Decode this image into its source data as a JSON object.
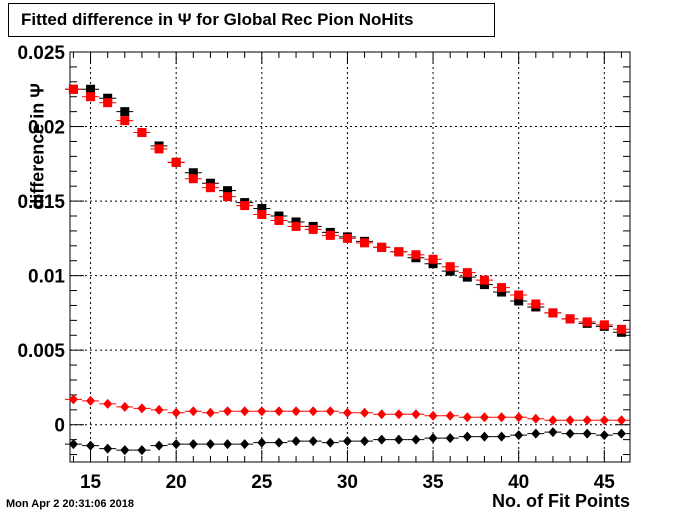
{
  "title": "Fitted difference in  Ψ  for Global Rec Pion NoHits",
  "datestamp": "Mon Apr  2 20:31:06 2018",
  "chart_data": {
    "type": "scatter",
    "xlabel": "No. of Fit Points",
    "ylabel": "difference in  Ψ",
    "xlim": [
      13.8,
      46.5
    ],
    "ylim": [
      -0.0025,
      0.025
    ],
    "x_ticks": [
      "15",
      "20",
      "25",
      "30",
      "35",
      "40",
      "45"
    ],
    "y_ticks": [
      "0",
      "0.005",
      "0.01",
      "0.015",
      "0.02",
      "0.025"
    ],
    "grid": true,
    "x": [
      14,
      15,
      16,
      17,
      18,
      19,
      20,
      21,
      22,
      23,
      24,
      25,
      26,
      27,
      28,
      29,
      30,
      31,
      32,
      33,
      34,
      35,
      36,
      37,
      38,
      39,
      40,
      41,
      42,
      43,
      44,
      45,
      46
    ],
    "series": [
      {
        "marker": "square",
        "color": "#000000",
        "values": [
          0.0225,
          0.0225,
          0.0219,
          0.021,
          0.0196,
          0.0187,
          0.0176,
          0.0169,
          0.0162,
          0.0157,
          0.0149,
          0.0145,
          0.014,
          0.0136,
          0.0133,
          0.0129,
          0.0126,
          0.0123,
          0.0119,
          0.0116,
          0.0112,
          0.0108,
          0.0103,
          0.0099,
          0.0094,
          0.0089,
          0.0083,
          0.0079,
          0.0075,
          0.0071,
          0.0068,
          0.0066,
          0.0062
        ]
      },
      {
        "marker": "square",
        "color": "#ff0000",
        "values": [
          0.0225,
          0.022,
          0.0216,
          0.0204,
          0.0196,
          0.0185,
          0.0176,
          0.0165,
          0.0159,
          0.0153,
          0.0147,
          0.0141,
          0.0137,
          0.0133,
          0.0131,
          0.0127,
          0.0125,
          0.0122,
          0.0119,
          0.0116,
          0.0114,
          0.0111,
          0.0106,
          0.0102,
          0.0097,
          0.0092,
          0.0087,
          0.0081,
          0.0075,
          0.0071,
          0.0069,
          0.0067,
          0.0064
        ]
      },
      {
        "marker": "diamond",
        "color": "#ff0000",
        "values": [
          0.0017,
          0.0016,
          0.0014,
          0.0012,
          0.0011,
          0.001,
          0.0008,
          0.0009,
          0.0008,
          0.0009,
          0.0009,
          0.0009,
          0.0009,
          0.0009,
          0.0009,
          0.0009,
          0.0008,
          0.0008,
          0.0007,
          0.0007,
          0.0007,
          0.0006,
          0.0006,
          0.0005,
          0.0005,
          0.0005,
          0.0005,
          0.0004,
          0.0003,
          0.0003,
          0.0003,
          0.0003,
          0.0003
        ]
      },
      {
        "marker": "diamond",
        "color": "#000000",
        "values": [
          -0.0013,
          -0.0014,
          -0.0016,
          -0.0017,
          -0.0017,
          -0.0014,
          -0.0013,
          -0.0013,
          -0.0013,
          -0.0013,
          -0.0013,
          -0.0012,
          -0.0012,
          -0.0011,
          -0.0011,
          -0.0012,
          -0.0011,
          -0.0011,
          -0.001,
          -0.001,
          -0.001,
          -0.0009,
          -0.0009,
          -0.0008,
          -0.0008,
          -0.0008,
          -0.0007,
          -0.0006,
          -0.0005,
          -0.0006,
          -0.0006,
          -0.0007,
          -0.0006
        ]
      }
    ]
  }
}
